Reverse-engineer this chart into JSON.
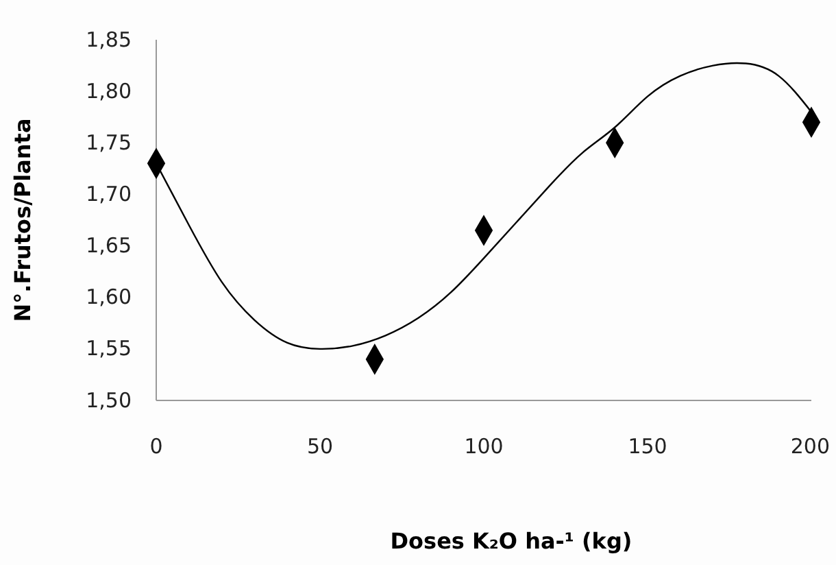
{
  "chart_data": {
    "type": "scatter",
    "xlabel": "Doses K₂O ha-¹ (kg)",
    "ylabel": "N°.Frutos/Planta",
    "xlim": [
      0,
      200
    ],
    "ylim": [
      1.5,
      1.85
    ],
    "xticks": [
      0,
      50,
      100,
      150,
      200
    ],
    "yticks": [
      {
        "value": 1.5,
        "label": "1,50"
      },
      {
        "value": 1.55,
        "label": "1,55"
      },
      {
        "value": 1.6,
        "label": "1,60"
      },
      {
        "value": 1.65,
        "label": "1,65"
      },
      {
        "value": 1.7,
        "label": "1,70"
      },
      {
        "value": 1.75,
        "label": "1,75"
      },
      {
        "value": 1.8,
        "label": "1,80"
      },
      {
        "value": 1.85,
        "label": "1,85"
      }
    ],
    "grid": false,
    "series": [
      {
        "marker": "diamond",
        "color": "#000000",
        "x": [
          0,
          66.7,
          100,
          140,
          200
        ],
        "values": [
          1.73,
          1.54,
          1.665,
          1.75,
          1.77
        ]
      },
      {
        "type": "line",
        "marker": "none",
        "color": "#000000",
        "x": [
          0,
          10,
          20,
          30,
          40,
          50,
          60,
          70,
          80,
          90,
          100,
          110,
          120,
          130,
          140,
          150,
          160,
          170,
          180,
          190,
          200
        ],
        "values": [
          1.73,
          1.67,
          1.615,
          1.578,
          1.556,
          1.55,
          1.553,
          1.563,
          1.58,
          1.605,
          1.638,
          1.673,
          1.708,
          1.74,
          1.765,
          1.795,
          1.815,
          1.825,
          1.827,
          1.815,
          1.78
        ]
      }
    ]
  }
}
